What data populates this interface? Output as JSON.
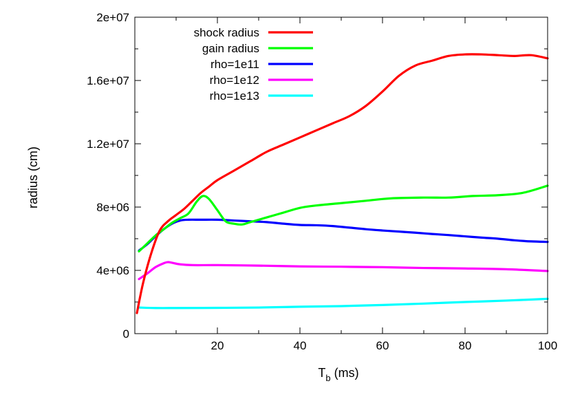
{
  "chart_data": {
    "type": "line",
    "title": "",
    "xlabel": "T",
    "xlabel_sub": "b",
    "xlabel_unit": " (ms)",
    "ylabel": "radius (cm)",
    "xlim": [
      0,
      100
    ],
    "ylim": [
      0,
      20000000
    ],
    "xticks": [
      20,
      40,
      60,
      80,
      100
    ],
    "xtick_labels": [
      "20",
      "40",
      "60",
      "80",
      "100"
    ],
    "yticks": [
      0,
      4000000,
      8000000,
      12000000,
      16000000,
      20000000
    ],
    "ytick_labels": [
      "0",
      "4e+06",
      "8e+06",
      "1.2e+07",
      "1.6e+07",
      "2e+07"
    ],
    "grid": false,
    "legend_position": "top-left",
    "series": [
      {
        "name": "shock radius",
        "color": "#ff0000",
        "x": [
          0.5,
          2,
          4,
          6,
          8,
          10,
          12,
          14,
          16,
          18,
          20,
          24,
          28,
          32,
          36,
          40,
          44,
          48,
          52,
          56,
          60,
          64,
          68,
          72,
          76,
          80,
          84,
          88,
          92,
          96,
          100
        ],
        "y": [
          1300000,
          3200000,
          5100000,
          6500000,
          7100000,
          7500000,
          7900000,
          8400000,
          8900000,
          9300000,
          9700000,
          10300000,
          10900000,
          11500000,
          11950000,
          12400000,
          12850000,
          13300000,
          13750000,
          14400000,
          15300000,
          16300000,
          16950000,
          17250000,
          17550000,
          17650000,
          17650000,
          17600000,
          17550000,
          17600000,
          17400000
        ]
      },
      {
        "name": "gain radius",
        "color": "#00ff00",
        "x": [
          1,
          3,
          5,
          7,
          9,
          11,
          13,
          15,
          16.5,
          18,
          20,
          22,
          24,
          26,
          28,
          32,
          36,
          40,
          44,
          50,
          56,
          62,
          70,
          76,
          82,
          88,
          94,
          100
        ],
        "y": [
          5200000,
          5700000,
          6200000,
          6600000,
          7000000,
          7300000,
          7600000,
          8350000,
          8700000,
          8500000,
          7800000,
          7100000,
          6950000,
          6900000,
          7050000,
          7350000,
          7650000,
          7950000,
          8100000,
          8250000,
          8400000,
          8550000,
          8600000,
          8600000,
          8700000,
          8750000,
          8900000,
          9350000
        ]
      },
      {
        "name": "rho=1e11",
        "color": "#0000ff",
        "x": [
          1,
          3,
          5,
          7,
          9,
          11,
          13,
          16,
          20,
          24,
          28,
          32,
          36,
          40,
          44,
          48,
          52,
          56,
          60,
          64,
          68,
          72,
          76,
          80,
          84,
          88,
          92,
          96,
          100
        ],
        "y": [
          5250000,
          5650000,
          6150000,
          6600000,
          6950000,
          7150000,
          7200000,
          7200000,
          7200000,
          7150000,
          7100000,
          7050000,
          6950000,
          6870000,
          6850000,
          6800000,
          6700000,
          6600000,
          6520000,
          6450000,
          6380000,
          6300000,
          6230000,
          6150000,
          6070000,
          6000000,
          5900000,
          5830000,
          5800000
        ]
      },
      {
        "name": "rho=1e12",
        "color": "#ff00ff",
        "x": [
          1,
          3,
          5,
          7,
          8,
          9,
          11,
          14,
          20,
          30,
          40,
          50,
          60,
          70,
          80,
          90,
          100
        ],
        "y": [
          3450000,
          3800000,
          4200000,
          4450000,
          4520000,
          4480000,
          4380000,
          4330000,
          4330000,
          4300000,
          4250000,
          4230000,
          4200000,
          4150000,
          4120000,
          4070000,
          3960000
        ]
      },
      {
        "name": "rho=1e13",
        "color": "#00ffff",
        "x": [
          1,
          5,
          10,
          20,
          30,
          40,
          50,
          60,
          70,
          80,
          90,
          100
        ],
        "y": [
          1650000,
          1620000,
          1620000,
          1630000,
          1650000,
          1700000,
          1740000,
          1810000,
          1900000,
          2000000,
          2090000,
          2200000
        ]
      }
    ]
  }
}
